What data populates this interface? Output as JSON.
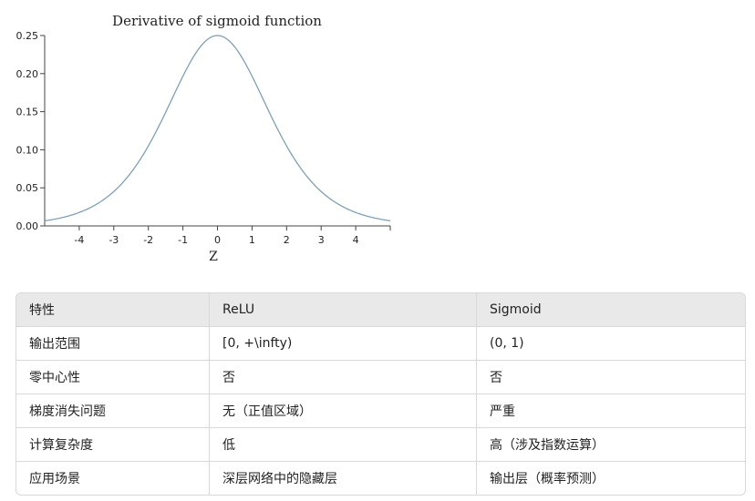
{
  "chart_data": {
    "type": "line",
    "title": "Derivative of sigmoid function",
    "xlabel": "Z",
    "ylabel": "",
    "xlim": [
      -5,
      5
    ],
    "ylim": [
      0,
      0.25
    ],
    "x_ticks": [
      "-4",
      "-3",
      "-2",
      "-1",
      "0",
      "1",
      "2",
      "3",
      "4"
    ],
    "y_ticks": [
      "0.00",
      "0.05",
      "0.10",
      "0.15",
      "0.20",
      "0.25"
    ],
    "series": [
      {
        "function": "sigmoid'(z) = sigmoid(z)(1 - sigmoid(z))",
        "x": [
          -5,
          -4,
          -3,
          -2,
          -1,
          0,
          1,
          2,
          3,
          4,
          5
        ],
        "values": [
          0.0066,
          0.0177,
          0.0452,
          0.105,
          0.1966,
          0.25,
          0.1966,
          0.105,
          0.0452,
          0.0177,
          0.0066
        ]
      }
    ],
    "colors": {
      "line": "#7ea0b8",
      "axis": "#444444"
    },
    "grid": false
  },
  "table": {
    "headers": [
      "特性",
      "ReLU",
      "Sigmoid"
    ],
    "rows": [
      [
        "输出范围",
        "[0, +\\infty)",
        "(0, 1)"
      ],
      [
        "零中心性",
        "否",
        "否"
      ],
      [
        "梯度消失问题",
        "无（正值区域）",
        "严重"
      ],
      [
        "计算复杂度",
        "低",
        "高（涉及指数运算）"
      ],
      [
        "应用场景",
        "深层网络中的隐藏层",
        "输出层（概率预测）"
      ]
    ]
  }
}
